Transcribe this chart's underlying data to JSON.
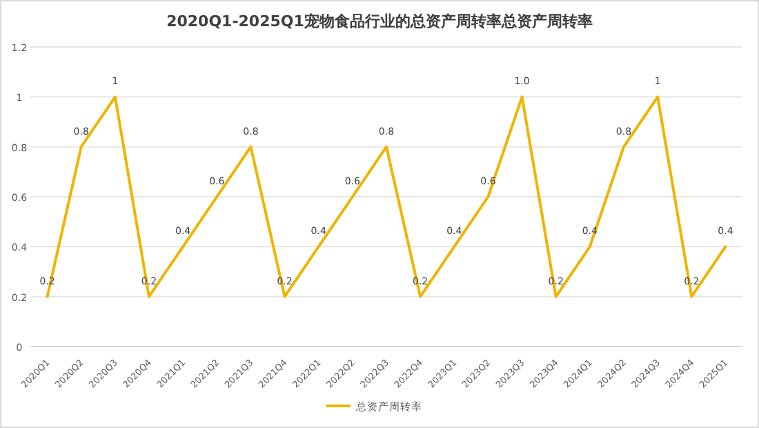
{
  "chart_data": {
    "type": "line",
    "title": "2020Q1-2025Q1宠物食品行业的总资产周转率总资产周转率",
    "categories": [
      "2020Q1",
      "2020Q2",
      "2020Q3",
      "2020Q4",
      "2021Q1",
      "2021Q2",
      "2021Q3",
      "2021Q4",
      "2022Q1",
      "2022Q2",
      "2022Q3",
      "2022Q4",
      "2023Q1",
      "2023Q2",
      "2023Q3",
      "2023Q4",
      "2024Q1",
      "2024Q2",
      "2024Q3",
      "2024Q4",
      "2025Q1"
    ],
    "series": [
      {
        "name": "总资产周转率",
        "color": "#f0b400",
        "values": [
          0.2,
          0.8,
          1,
          0.2,
          0.4,
          0.6,
          0.8,
          0.2,
          0.4,
          0.6,
          0.8,
          0.2,
          0.4,
          0.6,
          1.0,
          0.2,
          0.4,
          0.8,
          1,
          0.2,
          0.4
        ],
        "value_labels": [
          "0.2",
          "0.8",
          "1",
          "0.2",
          "0.4",
          "0.6",
          "0.8",
          "0.2",
          "0.4",
          "0.6",
          "0.8",
          "0.2",
          "0.4",
          "0.6",
          "1.0",
          "0.2",
          "0.4",
          "0.8",
          "1",
          "0.2",
          "0.4"
        ]
      }
    ],
    "ylim": [
      0,
      1.2
    ],
    "yticks": [
      0,
      0.2,
      0.4,
      0.6,
      0.8,
      1,
      1.2
    ],
    "grid": "y",
    "legend": "bottom",
    "marker": "none",
    "line_style": "solid"
  }
}
